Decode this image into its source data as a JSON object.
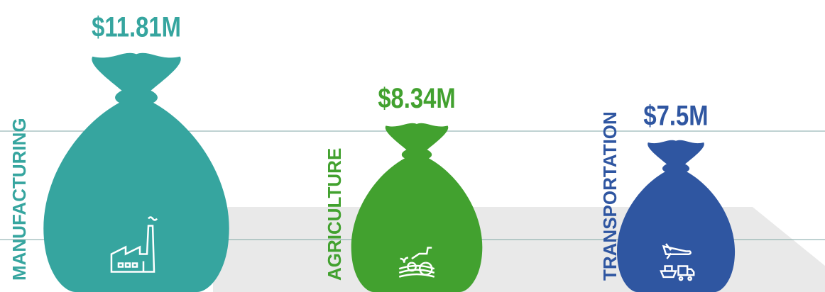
{
  "chart_data": {
    "type": "pictorial",
    "categories": [
      "MANUFACTURING",
      "AGRICULTURE",
      "TRANSPORTATION"
    ],
    "values": [
      11.81,
      8.34,
      7.5
    ],
    "value_labels": [
      "$11.81M",
      "$8.34M",
      "$7.5M"
    ],
    "colors": [
      "#36a59f",
      "#42a12f",
      "#2f56a1"
    ]
  }
}
